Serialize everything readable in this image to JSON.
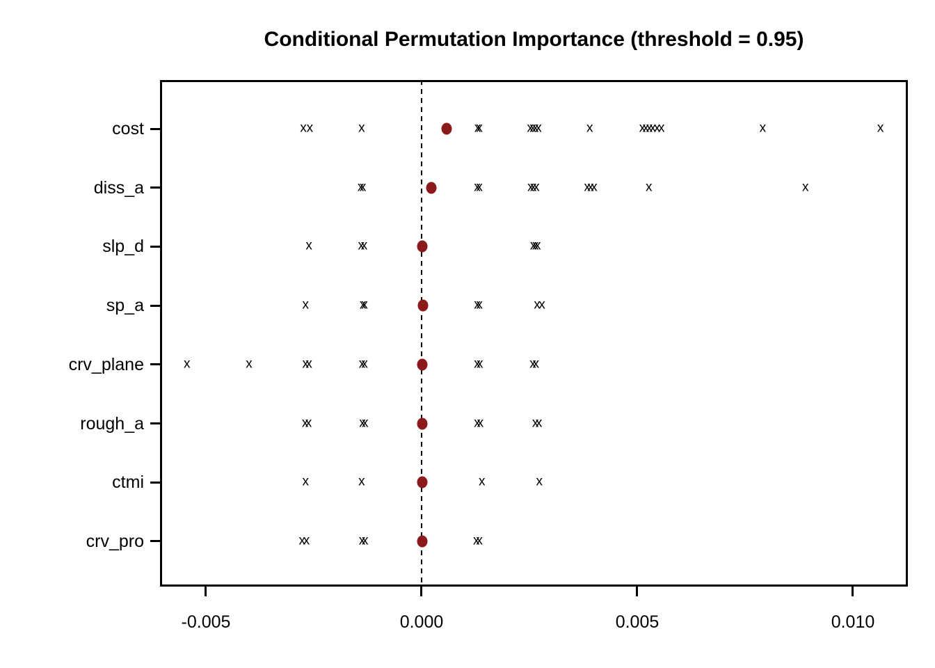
{
  "chart_data": {
    "type": "scatter",
    "title": "Conditional Permutation Importance (threshold = 0.95)",
    "xlabel": "",
    "ylabel": "",
    "xlim": [
      -0.0060645,
      0.0112742
    ],
    "grid": false,
    "zero_reference_line": 0,
    "marker_glyph": "x",
    "marker_color": "#000000",
    "mean_marker_color": "#8B1A1A",
    "x_ticks": {
      "values": [
        -0.005,
        0.0,
        0.005,
        0.01
      ],
      "labels": [
        "-0.005",
        "0.000",
        "0.005",
        "0.010"
      ]
    },
    "categories": [
      "cost",
      "diss_a",
      "slp_d",
      "sp_a",
      "crv_plane",
      "rough_a",
      "ctmi",
      "crv_pro"
    ],
    "series": [
      {
        "name": "cost",
        "mean": 0.00058,
        "points": [
          -0.00274,
          -0.00259,
          -0.00139,
          0.0013,
          0.00134,
          0.00252,
          0.00258,
          0.00264,
          0.00271,
          0.0039,
          0.00512,
          0.0052,
          0.00528,
          0.00536,
          0.00546,
          0.00556,
          0.00791,
          0.01064
        ]
      },
      {
        "name": "diss_a",
        "mean": 0.00022,
        "points": [
          -0.00141,
          -0.00136,
          0.00129,
          0.00134,
          0.00253,
          0.00259,
          0.00266,
          0.00384,
          0.00392,
          0.004,
          0.00527,
          0.0089
        ]
      },
      {
        "name": "slp_d",
        "mean": 2e-05,
        "points": [
          -0.00261,
          -0.0014,
          -0.00133,
          0.00259,
          0.00264,
          0.00269
        ]
      },
      {
        "name": "sp_a",
        "mean": 3e-05,
        "points": [
          -0.00269,
          -0.00136,
          -0.00132,
          0.00129,
          0.00134,
          0.00268,
          0.00279
        ]
      },
      {
        "name": "crv_plane",
        "mean": 2e-05,
        "points": [
          -0.00544,
          -0.004,
          -0.00269,
          -0.00261,
          -0.00138,
          -0.00132,
          0.00129,
          0.00135,
          0.00258,
          0.00265
        ]
      },
      {
        "name": "rough_a",
        "mean": 2e-05,
        "points": [
          -0.0027,
          -0.00262,
          -0.00137,
          -0.00131,
          0.00129,
          0.00136,
          0.00264,
          0.00272
        ]
      },
      {
        "name": "ctmi",
        "mean": 2e-05,
        "points": [
          -0.00269,
          -0.00139,
          0.0014,
          0.00273
        ]
      },
      {
        "name": "crv_pro",
        "mean": 1e-05,
        "points": [
          -0.00277,
          -0.00267,
          -0.00138,
          -0.00131,
          0.00127,
          0.00134
        ]
      }
    ]
  }
}
